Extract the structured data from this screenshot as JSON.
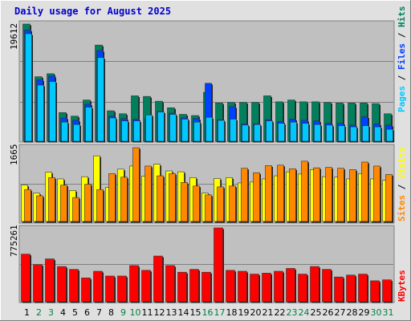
{
  "title": "Daily usage for August 2025",
  "colors": {
    "title": "#0000cc",
    "hits": "#00805c",
    "files": "#0040ff",
    "pages": "#00c8ff",
    "visits": "#ffff00",
    "sites": "#ff8800",
    "kbytes": "#ff0000",
    "weekend_label": "#008040",
    "panel_bg": "#c0c0c0",
    "page_bg": "#e0e0e0"
  },
  "chart_data": [
    {
      "type": "bar",
      "panel": "hits-files-pages",
      "ymax_label": "19612",
      "ylim": [
        0,
        19612
      ],
      "right_labels": [
        {
          "text": "Pages",
          "color": "#00c8ff"
        },
        {
          "text": " / ",
          "color": "#000000"
        },
        {
          "text": "Files",
          "color": "#0040ff"
        },
        {
          "text": " / ",
          "color": "#000000"
        },
        {
          "text": "Hits",
          "color": "#00805c"
        }
      ],
      "series": [
        {
          "name": "Hits",
          "values": [
            19612,
            10800,
            11300,
            4800,
            4200,
            6900,
            16100,
            5100,
            4600,
            7600,
            7500,
            6700,
            5600,
            4500,
            4300,
            8200,
            6400,
            6500,
            6500,
            6500,
            7600,
            6600,
            6900,
            6600,
            6600,
            6500,
            6400,
            6400,
            6400,
            6300,
            4600
          ]
        },
        {
          "name": "Files",
          "values": [
            18600,
            10300,
            10900,
            3900,
            3500,
            6200,
            15200,
            4200,
            3800,
            3700,
            3800,
            5000,
            4700,
            3900,
            3800,
            9700,
            3600,
            5800,
            2900,
            2900,
            3600,
            3300,
            3700,
            3500,
            3400,
            3000,
            3000,
            2700,
            4100,
            2900,
            2700
          ]
        },
        {
          "name": "Pages",
          "values": [
            18000,
            9400,
            10000,
            3200,
            2800,
            5700,
            14000,
            3900,
            3400,
            3400,
            4400,
            4900,
            4500,
            3700,
            3200,
            4000,
            3500,
            3700,
            2700,
            2800,
            3400,
            3000,
            3200,
            3000,
            2800,
            2700,
            2600,
            2400,
            2600,
            2400,
            2000
          ]
        }
      ]
    },
    {
      "type": "bar",
      "panel": "visits-sites",
      "ymax_label": "1665",
      "ylim": [
        0,
        1665
      ],
      "right_labels": [
        {
          "text": "Sites",
          "color": "#ff8800"
        },
        {
          "text": " / ",
          "color": "#000000"
        },
        {
          "text": "Visits",
          "color": "#ffff00"
        }
      ],
      "series": [
        {
          "name": "Visits",
          "values": [
            820,
            640,
            1110,
            960,
            700,
            1010,
            1480,
            770,
            1180,
            1250,
            1020,
            1290,
            1140,
            1120,
            990,
            640,
            970,
            990,
            870,
            890,
            960,
            1030,
            1120,
            1070,
            1170,
            1010,
            1000,
            960,
            1080,
            960,
            930
          ]
        },
        {
          "name": "Sites",
          "values": [
            720,
            580,
            990,
            820,
            540,
            840,
            720,
            1080,
            1000,
            1665,
            1250,
            1030,
            1080,
            880,
            800,
            600,
            780,
            800,
            1200,
            1100,
            1260,
            1270,
            1190,
            1360,
            1210,
            1220,
            1200,
            1170,
            1340,
            1250,
            1060
          ]
        }
      ]
    },
    {
      "type": "bar",
      "panel": "kbytes",
      "ymax_label": "775261",
      "ylim": [
        0,
        775261
      ],
      "right_labels": [
        {
          "text": "KBytes",
          "color": "#ff0000"
        }
      ],
      "series": [
        {
          "name": "KBytes",
          "values": [
            500000,
            390000,
            450000,
            370000,
            340000,
            250000,
            320000,
            270000,
            270000,
            380000,
            330000,
            480000,
            380000,
            310000,
            340000,
            310000,
            775261,
            330000,
            320000,
            290000,
            300000,
            320000,
            350000,
            290000,
            370000,
            340000,
            260000,
            280000,
            290000,
            220000,
            230000
          ]
        }
      ]
    }
  ],
  "x_labels": [
    {
      "text": "1",
      "weekend": false
    },
    {
      "text": "2",
      "weekend": true
    },
    {
      "text": "3",
      "weekend": true
    },
    {
      "text": "4",
      "weekend": false
    },
    {
      "text": "5",
      "weekend": false
    },
    {
      "text": "6",
      "weekend": false
    },
    {
      "text": "7",
      "weekend": false
    },
    {
      "text": "8",
      "weekend": false
    },
    {
      "text": "9",
      "weekend": true
    },
    {
      "text": "10",
      "weekend": true
    },
    {
      "text": "11",
      "weekend": false
    },
    {
      "text": "12",
      "weekend": false
    },
    {
      "text": "13",
      "weekend": false
    },
    {
      "text": "14",
      "weekend": false
    },
    {
      "text": "15",
      "weekend": false
    },
    {
      "text": "16",
      "weekend": true
    },
    {
      "text": "17",
      "weekend": true
    },
    {
      "text": "18",
      "weekend": false
    },
    {
      "text": "19",
      "weekend": false
    },
    {
      "text": "20",
      "weekend": false
    },
    {
      "text": "21",
      "weekend": false
    },
    {
      "text": "22",
      "weekend": false
    },
    {
      "text": "23",
      "weekend": true
    },
    {
      "text": "24",
      "weekend": true
    },
    {
      "text": "25",
      "weekend": false
    },
    {
      "text": "26",
      "weekend": false
    },
    {
      "text": "27",
      "weekend": false
    },
    {
      "text": "28",
      "weekend": false
    },
    {
      "text": "29",
      "weekend": false
    },
    {
      "text": "30",
      "weekend": true
    },
    {
      "text": "31",
      "weekend": true
    }
  ]
}
